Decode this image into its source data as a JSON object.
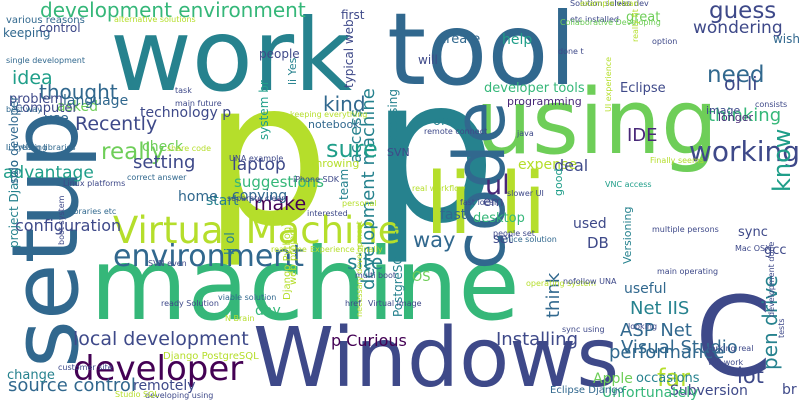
{
  "palette": {
    "background": "#ffffff",
    "viridis": [
      "#440154",
      "#482878",
      "#3e4989",
      "#31688e",
      "#26828e",
      "#1f9e89",
      "#35b779",
      "#6ece58",
      "#b5de2b",
      "#fde725"
    ]
  },
  "words": [
    {
      "text": "p",
      "color": "#b5de2b"
    },
    {
      "text": "p",
      "color": "#26828e"
    },
    {
      "text": "work",
      "color": "#26828e"
    },
    {
      "text": "tool",
      "color": "#31688e"
    },
    {
      "text": "machine",
      "color": "#35b779"
    },
    {
      "text": "Windows",
      "color": "#3e4989"
    },
    {
      "text": "using",
      "color": "#6ece58"
    },
    {
      "text": "li li",
      "color": "#b5de2b"
    },
    {
      "text": "setup",
      "color": "#31688e"
    },
    {
      "text": "code",
      "color": "#31688e"
    },
    {
      "text": "C",
      "color": "#3e4989"
    },
    {
      "text": "Virtual Machine",
      "color": "#b5de2b"
    },
    {
      "text": "environment",
      "color": "#31688e"
    },
    {
      "text": "developer",
      "color": "#440154"
    },
    {
      "text": "working",
      "color": "#3e4989"
    },
    {
      "text": "know",
      "color": "#1f9e89"
    },
    {
      "text": "development environment",
      "color": "#35b779"
    },
    {
      "text": "local development",
      "color": "#3e4989"
    },
    {
      "text": "source control",
      "color": "#31688e"
    },
    {
      "text": "Recently",
      "color": "#3e4989"
    },
    {
      "text": "really",
      "color": "#6ece58"
    },
    {
      "text": "setting",
      "color": "#3e4989"
    },
    {
      "text": "thought",
      "color": "#31688e"
    },
    {
      "text": "idea",
      "color": "#1f9e89"
    },
    {
      "text": "development machine",
      "color": "#26828e"
    },
    {
      "text": "thinking",
      "color": "#35b779"
    },
    {
      "text": "need",
      "color": "#31688e"
    },
    {
      "text": "guess",
      "color": "#3e4989"
    },
    {
      "text": "wondering",
      "color": "#3e4989"
    },
    {
      "text": "pen drive",
      "color": "#26828e"
    },
    {
      "text": "ol li",
      "color": "#3e4989"
    },
    {
      "text": "IDE",
      "color": "#482878"
    },
    {
      "text": "ASP Net",
      "color": "#31688e"
    },
    {
      "text": "Visual Studio",
      "color": "#31688e"
    },
    {
      "text": "Net IIS",
      "color": "#26828e"
    },
    {
      "text": "performance",
      "color": "#31688e"
    },
    {
      "text": "far",
      "color": "#b5de2b"
    },
    {
      "text": "lot",
      "color": "#3e4989"
    },
    {
      "text": "Installing",
      "color": "#3e4989"
    },
    {
      "text": "site",
      "color": "#26828e"
    },
    {
      "text": "access",
      "color": "#26828e"
    },
    {
      "text": "sure",
      "color": "#1f9e89"
    },
    {
      "text": "kind",
      "color": "#31688e"
    },
    {
      "text": "ul",
      "color": "#482878"
    },
    {
      "text": "make",
      "color": "#440154"
    },
    {
      "text": "way",
      "color": "#31688e"
    },
    {
      "text": "think",
      "color": "#31688e"
    },
    {
      "text": "laptop",
      "color": "#3e4989"
    },
    {
      "text": "suggestions",
      "color": "#35b779"
    },
    {
      "text": "copying",
      "color": "#31688e"
    },
    {
      "text": "start",
      "color": "#26828e"
    },
    {
      "text": "home",
      "color": "#31688e"
    },
    {
      "text": "configuration",
      "color": "#3e4989"
    },
    {
      "text": "advantage",
      "color": "#1f9e89"
    },
    {
      "text": "check",
      "color": "#6ece58"
    },
    {
      "text": "technology p",
      "color": "#3e4989"
    },
    {
      "text": "use",
      "color": "#31688e"
    },
    {
      "text": "asked",
      "color": "#6ece58"
    },
    {
      "text": "problem",
      "color": "#3e4989"
    },
    {
      "text": "language",
      "color": "#31688e"
    },
    {
      "text": "computer",
      "color": "#3e4989"
    },
    {
      "text": "keeping",
      "color": "#31688e"
    },
    {
      "text": "control",
      "color": "#3e4989"
    },
    {
      "text": "first",
      "color": "#3e4989"
    },
    {
      "text": "people",
      "color": "#3e4989"
    },
    {
      "text": "create",
      "color": "#31688e"
    },
    {
      "text": "help",
      "color": "#1f9e89"
    },
    {
      "text": "great",
      "color": "#6ece58"
    },
    {
      "text": "will",
      "color": "#3e4989"
    },
    {
      "text": "developer tools",
      "color": "#35b779"
    },
    {
      "text": "programming",
      "color": "#482878"
    },
    {
      "text": "one",
      "color": "#26828e"
    },
    {
      "text": "li Yes",
      "color": "#26828e"
    },
    {
      "text": "typical web",
      "color": "#3e4989"
    },
    {
      "text": "system br",
      "color": "#1f9e89"
    },
    {
      "text": "team",
      "color": "#26828e"
    },
    {
      "text": "accessing",
      "color": "#26828e"
    },
    {
      "text": "throwing",
      "color": "#b5de2b"
    },
    {
      "text": "notebook",
      "color": "#31688e"
    },
    {
      "text": "SVN",
      "color": "#3e4989"
    },
    {
      "text": "em",
      "color": "#3e4989"
    },
    {
      "text": "DB",
      "color": "#3e4989"
    },
    {
      "text": "OS",
      "color": "#6ece58"
    },
    {
      "text": "fast",
      "color": "#31688e"
    },
    {
      "text": "set",
      "color": "#3e4989"
    },
    {
      "text": "desktop",
      "color": "#35b779"
    },
    {
      "text": "expense",
      "color": "#b5de2b"
    },
    {
      "text": "deal",
      "color": "#3e4989"
    },
    {
      "text": "good",
      "color": "#1f9e89"
    },
    {
      "text": "used",
      "color": "#3e4989"
    },
    {
      "text": "Versioning",
      "color": "#26828e"
    },
    {
      "text": "sync",
      "color": "#3e4989"
    },
    {
      "text": "gcc",
      "color": "#3e4989"
    },
    {
      "text": "longer",
      "color": "#482878"
    },
    {
      "text": "image",
      "color": "#3e4989"
    },
    {
      "text": "Eclipse",
      "color": "#3e4989"
    },
    {
      "text": "useful",
      "color": "#31688e"
    },
    {
      "text": "Apple",
      "color": "#6ece58"
    },
    {
      "text": "occasions",
      "color": "#26828e"
    },
    {
      "text": "Subversion",
      "color": "#3e4989"
    },
    {
      "text": "Unfortunately",
      "color": "#35b779"
    },
    {
      "text": "remotely",
      "color": "#3e4989"
    },
    {
      "text": "day",
      "color": "#35b779"
    },
    {
      "text": "change",
      "color": "#26828e"
    },
    {
      "text": "li ol",
      "color": "#26828e"
    },
    {
      "text": "p Curious",
      "color": "#440154"
    },
    {
      "text": "br",
      "color": "#3e4989"
    },
    {
      "text": "wish",
      "color": "#31688e"
    },
    {
      "text": "web project",
      "color": "#b5de2b"
    },
    {
      "text": "project Django",
      "color": "#26828e"
    },
    {
      "text": "solo developer",
      "color": "#31688e"
    },
    {
      "text": "PostgreSQL using",
      "color": "#26828e"
    },
    {
      "text": "Eclipse Django",
      "color": "#31688e"
    },
    {
      "text": "Django PostgreSQL",
      "color": "#b5de2b"
    },
    {
      "text": "Django Python",
      "color": "#b5de2b"
    },
    {
      "text": "various reasons",
      "color": "#31688e"
    },
    {
      "text": "single development",
      "color": "#31688e"
    },
    {
      "text": "best way",
      "color": "#31688e"
    },
    {
      "text": "li Python libraries",
      "color": "#31688e"
    },
    {
      "text": "li Creating",
      "color": "#31688e"
    },
    {
      "text": "Linux platforms",
      "color": "#3e4989"
    },
    {
      "text": "correct answer",
      "color": "#31688e"
    },
    {
      "text": "libraries etc",
      "color": "#31688e"
    },
    {
      "text": "iPhone SDK",
      "color": "#3e4989"
    },
    {
      "text": "share code",
      "color": "#b5de2b"
    },
    {
      "text": "keeping everything",
      "color": "#b5de2b"
    },
    {
      "text": "Solution solves",
      "color": "#3e4989"
    },
    {
      "text": "etc installed",
      "color": "#3e4989"
    },
    {
      "text": "Collaborative Developing",
      "color": "#6ece58"
    },
    {
      "text": "alternative solutions",
      "color": "#b5de2b"
    },
    {
      "text": "clean dev",
      "color": "#3e4989"
    },
    {
      "text": "done t",
      "color": "#3e4989"
    },
    {
      "text": "really fit",
      "color": "#b5de2b"
    },
    {
      "text": "option",
      "color": "#3e4989"
    },
    {
      "text": "slower UI",
      "color": "#3e4989"
    },
    {
      "text": "real workflow",
      "color": "#b5de2b"
    },
    {
      "text": "fast local",
      "color": "#3e4989"
    },
    {
      "text": "nice solution",
      "color": "#31688e"
    },
    {
      "text": "people set",
      "color": "#3e4989"
    },
    {
      "text": "VNC access",
      "color": "#1f9e89"
    },
    {
      "text": "Mac OSX",
      "color": "#3e4989"
    },
    {
      "text": "multiple persons",
      "color": "#3e4989"
    },
    {
      "text": "Finally seems",
      "color": "#b5de2b"
    },
    {
      "text": "remote connect",
      "color": "#3e4989"
    },
    {
      "text": "UNA example",
      "color": "#3e4989"
    },
    {
      "text": "separate clean",
      "color": "#3e4989"
    },
    {
      "text": "personal",
      "color": "#b5de2b"
    },
    {
      "text": "interested",
      "color": "#3e4989"
    },
    {
      "text": "Experience Finally",
      "color": "#b5de2b"
    },
    {
      "text": "real time",
      "color": "#b5de2b"
    },
    {
      "text": "boot system",
      "color": "#3e4989"
    },
    {
      "text": "SVN even",
      "color": "#3e4989"
    },
    {
      "text": "viable solution",
      "color": "#31688e"
    },
    {
      "text": "ready Solution",
      "color": "#3e4989"
    },
    {
      "text": "customer site",
      "color": "#3e4989"
    },
    {
      "text": "developing using",
      "color": "#3e4989"
    },
    {
      "text": "Studio SQL",
      "color": "#b5de2b"
    },
    {
      "text": "main operating",
      "color": "#3e4989"
    },
    {
      "text": "operating system",
      "color": "#b5de2b"
    },
    {
      "text": "multi boot",
      "color": "#3e4989"
    },
    {
      "text": "nofollow UNA",
      "color": "#3e4989"
    },
    {
      "text": "sync using",
      "color": "#3e4989"
    },
    {
      "text": "looking",
      "color": "#3e4989"
    },
    {
      "text": "necessary development",
      "color": "#b5de2b"
    },
    {
      "text": "Virtual image",
      "color": "#3e4989"
    },
    {
      "text": "will work",
      "color": "#3e4989"
    },
    {
      "text": "working real",
      "color": "#3e4989"
    },
    {
      "text": "tests",
      "color": "#3e4989"
    },
    {
      "text": "development done",
      "color": "#3e4989"
    },
    {
      "text": "main future",
      "color": "#3e4989"
    },
    {
      "text": "task",
      "color": "#3e4989"
    },
    {
      "text": "consists",
      "color": "#3e4989"
    },
    {
      "text": "java",
      "color": "#3e4989"
    },
    {
      "text": "UI experience",
      "color": "#b5de2b"
    },
    {
      "text": "example clean",
      "color": "#b5de2b"
    },
    {
      "text": "href",
      "color": "#3e4989"
    },
    {
      "text": "N Brain",
      "color": "#b5de2b"
    }
  ]
}
